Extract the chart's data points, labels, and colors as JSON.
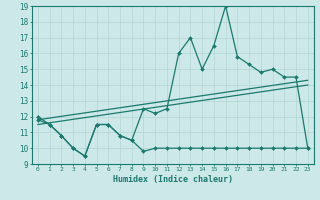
{
  "xlabel": "Humidex (Indice chaleur)",
  "ylabel": "",
  "bg_color": "#cce8e8",
  "grid_color": "#b8d8d8",
  "line_color": "#1a7a6e",
  "xmin": -0.5,
  "xmax": 23.5,
  "ymin": 9,
  "ymax": 19,
  "x_ticks": [
    0,
    1,
    2,
    3,
    4,
    5,
    6,
    7,
    8,
    9,
    10,
    11,
    12,
    13,
    14,
    15,
    16,
    17,
    18,
    19,
    20,
    21,
    22,
    23
  ],
  "y_ticks": [
    9,
    10,
    11,
    12,
    13,
    14,
    15,
    16,
    17,
    18,
    19
  ],
  "line1_x": [
    0,
    1,
    2,
    3,
    4,
    5,
    6,
    7,
    8,
    9,
    10,
    11,
    12,
    13,
    14,
    15,
    16,
    17,
    18,
    19,
    20,
    21,
    22,
    23
  ],
  "line1_y": [
    12.0,
    11.5,
    10.8,
    10.0,
    9.5,
    11.5,
    11.5,
    10.8,
    10.5,
    12.5,
    12.2,
    12.5,
    16.0,
    17.0,
    15.0,
    16.5,
    19.0,
    15.8,
    15.3,
    14.8,
    15.0,
    14.5,
    14.5,
    10.0
  ],
  "line2_x": [
    0,
    1,
    2,
    3,
    4,
    5,
    6,
    7,
    8,
    9,
    10,
    11,
    12,
    13,
    14,
    15,
    16,
    17,
    18,
    19,
    20,
    21,
    22,
    23
  ],
  "line2_y": [
    11.8,
    11.5,
    10.8,
    10.0,
    9.5,
    11.5,
    11.5,
    10.8,
    10.5,
    9.8,
    10.0,
    10.0,
    10.0,
    10.0,
    10.0,
    10.0,
    10.0,
    10.0,
    10.0,
    10.0,
    10.0,
    10.0,
    10.0,
    10.0
  ],
  "line3_x": [
    0,
    23
  ],
  "line3_y": [
    11.5,
    14.0
  ],
  "line4_x": [
    0,
    23
  ],
  "line4_y": [
    11.8,
    14.3
  ]
}
